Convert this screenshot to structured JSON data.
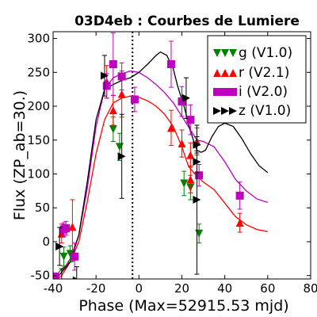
{
  "chart_data": {
    "type": "scatter",
    "title": "03D4eb : Courbes de Lumiere",
    "xlabel": "Phase (Max=52915.53 mjd)",
    "ylabel": "Flux (ZP_ab=30.)",
    "xlim": [
      -40,
      80
    ],
    "ylim": [
      -55,
      310
    ],
    "xticks": [
      -40,
      -20,
      0,
      20,
      40,
      60,
      80
    ],
    "yticks": [
      -50,
      0,
      50,
      100,
      150,
      200,
      250,
      300
    ],
    "xtick_labels": [
      "-40",
      "-20",
      "0",
      "20",
      "40",
      "60",
      "80"
    ],
    "ytick_labels": [
      "-50",
      "0",
      "50",
      "100",
      "150",
      "200",
      "250",
      "300"
    ],
    "max_line_x": -3,
    "legend_position": "top-right",
    "series": [
      {
        "name": "g (V1.0)",
        "color": "#008000",
        "marker": "triangle-down",
        "points": [
          {
            "x": -35,
            "y": -22,
            "err": 14
          },
          {
            "x": -32,
            "y": -18,
            "err": 12
          },
          {
            "x": -12,
            "y": 166,
            "err": 18
          },
          {
            "x": -9,
            "y": 140,
            "err": 20
          },
          {
            "x": 21,
            "y": 86,
            "err": 18
          },
          {
            "x": 24,
            "y": 80,
            "err": 18
          },
          {
            "x": 28,
            "y": 12,
            "err": 14
          }
        ],
        "model": [
          [
            -40,
            -50
          ],
          [
            -38,
            -48
          ],
          [
            -36,
            -40
          ],
          [
            -34,
            -35
          ],
          [
            -32,
            -30
          ],
          [
            -30,
            -28
          ]
        ]
      },
      {
        "name": "r (V2.1)",
        "color": "#ff0000",
        "marker": "triangle-up",
        "points": [
          {
            "x": -36,
            "y": 12,
            "err": 14
          },
          {
            "x": -31,
            "y": 22,
            "err": 40
          },
          {
            "x": -15,
            "y": 236,
            "err": 24
          },
          {
            "x": -12,
            "y": 194,
            "err": 22
          },
          {
            "x": -8,
            "y": 218,
            "err": 34
          },
          {
            "x": 15,
            "y": 168,
            "err": 26
          },
          {
            "x": 20,
            "y": 145,
            "err": 20
          },
          {
            "x": 24,
            "y": 128,
            "err": 18
          },
          {
            "x": 24,
            "y": 92,
            "err": 20
          },
          {
            "x": 27,
            "y": 148,
            "err": 20
          },
          {
            "x": 47,
            "y": 28,
            "err": 14
          }
        ],
        "model": [
          [
            -40,
            -60
          ],
          [
            -36,
            -50
          ],
          [
            -32,
            -30
          ],
          [
            -28,
            0
          ],
          [
            -24,
            60
          ],
          [
            -20,
            130
          ],
          [
            -16,
            180
          ],
          [
            -12,
            205
          ],
          [
            -8,
            212
          ],
          [
            -4,
            215
          ],
          [
            0,
            213
          ],
          [
            4,
            208
          ],
          [
            8,
            200
          ],
          [
            12,
            188
          ],
          [
            16,
            170
          ],
          [
            20,
            140
          ],
          [
            23,
            112
          ],
          [
            26,
            100
          ],
          [
            30,
            88
          ],
          [
            35,
            77
          ],
          [
            40,
            57
          ],
          [
            45,
            37
          ],
          [
            50,
            25
          ],
          [
            55,
            18
          ],
          [
            60,
            15
          ]
        ]
      },
      {
        "name": "i (V2.0)",
        "color": "#bf00bf",
        "marker": "square",
        "points": [
          {
            "x": -39,
            "y": -52,
            "err": 6
          },
          {
            "x": -35,
            "y": 18,
            "err": 10
          },
          {
            "x": -34,
            "y": 20,
            "err": 10
          },
          {
            "x": -30,
            "y": -22,
            "err": 20
          },
          {
            "x": -15,
            "y": 230,
            "err": 18
          },
          {
            "x": -12,
            "y": 262,
            "err": 46
          },
          {
            "x": -8,
            "y": 244,
            "err": 20
          },
          {
            "x": -2,
            "y": 210,
            "err": 18
          },
          {
            "x": 15,
            "y": 262,
            "err": 34
          },
          {
            "x": 20,
            "y": 207,
            "err": 22
          },
          {
            "x": 24,
            "y": 180,
            "err": 22
          },
          {
            "x": 28,
            "y": 98,
            "err": 16
          },
          {
            "x": 47,
            "y": 68,
            "err": 20
          }
        ],
        "model": [
          [
            -40,
            -60
          ],
          [
            -36,
            -45
          ],
          [
            -32,
            -25
          ],
          [
            -28,
            10
          ],
          [
            -24,
            80
          ],
          [
            -20,
            170
          ],
          [
            -16,
            225
          ],
          [
            -12,
            242
          ],
          [
            -8,
            248
          ],
          [
            -4,
            252
          ],
          [
            0,
            250
          ],
          [
            4,
            242
          ],
          [
            8,
            232
          ],
          [
            12,
            220
          ],
          [
            16,
            205
          ],
          [
            20,
            185
          ],
          [
            24,
            165
          ],
          [
            27,
            150
          ],
          [
            30,
            148
          ],
          [
            35,
            140
          ],
          [
            40,
            118
          ],
          [
            45,
            92
          ],
          [
            50,
            75
          ],
          [
            55,
            63
          ],
          [
            60,
            58
          ]
        ]
      },
      {
        "name": "z (V1.0)",
        "color": "#000000",
        "marker": "triangle-right",
        "points": [
          {
            "x": -37,
            "y": -7,
            "err": 28
          },
          {
            "x": -36,
            "y": -60,
            "err": 20
          },
          {
            "x": -29,
            "y": -57,
            "err": 20
          },
          {
            "x": -16,
            "y": 245,
            "err": 30
          },
          {
            "x": -8,
            "y": 126,
            "err": 62
          },
          {
            "x": 22,
            "y": 212,
            "err": 30
          },
          {
            "x": 27,
            "y": 143,
            "err": 12
          },
          {
            "x": 27,
            "y": 118,
            "err": 16
          },
          {
            "x": 27,
            "y": 62,
            "err": 110
          }
        ],
        "model": [
          [
            -40,
            -60
          ],
          [
            -36,
            -45
          ],
          [
            -32,
            -30
          ],
          [
            -28,
            10
          ],
          [
            -24,
            90
          ],
          [
            -20,
            180
          ],
          [
            -16,
            225
          ],
          [
            -12,
            232
          ],
          [
            -8,
            238
          ],
          [
            -4,
            242
          ],
          [
            0,
            250
          ],
          [
            4,
            262
          ],
          [
            8,
            275
          ],
          [
            10,
            280
          ],
          [
            13,
            275
          ],
          [
            16,
            255
          ],
          [
            18,
            230
          ],
          [
            21,
            200
          ],
          [
            24,
            163
          ],
          [
            27,
            135
          ],
          [
            29,
            132
          ],
          [
            31,
            135
          ],
          [
            34,
            155
          ],
          [
            37,
            170
          ],
          [
            40,
            175
          ],
          [
            44,
            170
          ],
          [
            48,
            152
          ],
          [
            52,
            130
          ],
          [
            56,
            112
          ],
          [
            60,
            102
          ]
        ]
      }
    ]
  }
}
